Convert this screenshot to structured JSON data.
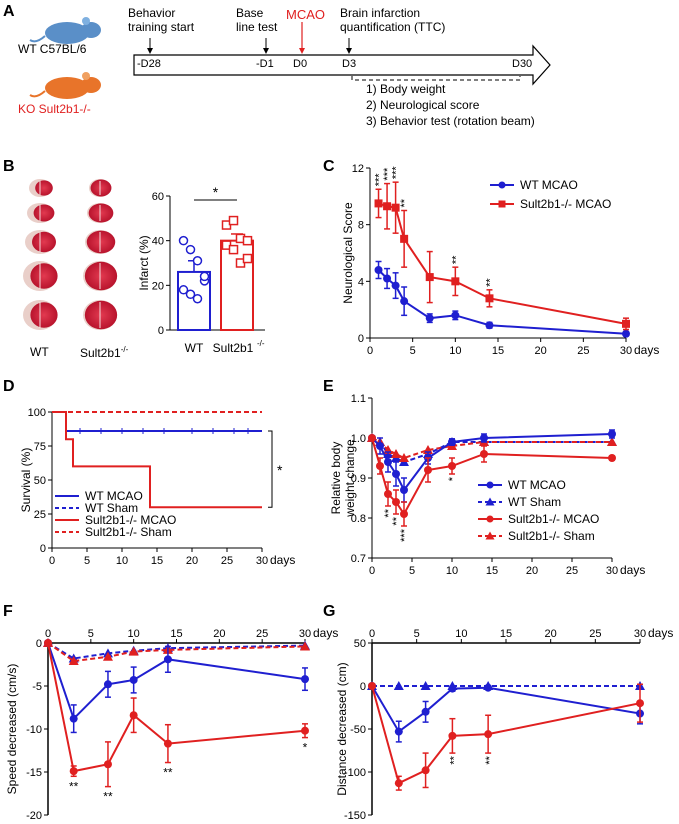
{
  "colors": {
    "wt": "#1f1fd0",
    "ko": "#e02020",
    "mouse_wt": "#5a8fc8",
    "mouse_ko": "#e8742a",
    "brain_red": "#c8102e",
    "brain_pale": "#e9cfc9"
  },
  "panel_labels": [
    "A",
    "B",
    "C",
    "D",
    "E",
    "F",
    "G"
  ],
  "panelA": {
    "wt_label": "WT C57BL/6",
    "ko_label": "KO Sult2b1-/-",
    "events": [
      {
        "label": "Behavior\ntraining start",
        "tick": "-D28"
      },
      {
        "label": "Base\nline test",
        "tick": "-D1"
      },
      {
        "label": "MCAO",
        "tick": "D0"
      },
      {
        "label": "Brain infarction\nquantification (TTC)",
        "tick": "D3"
      }
    ],
    "end_tick": "D30",
    "assessments": [
      "1) Body weight",
      "2) Neurological score",
      "3) Behavior test (rotation beam)"
    ]
  },
  "panelB": {
    "group_labels": [
      "WT",
      "Sult2b1"
    ],
    "group_sup": "-/-",
    "chart_data": {
      "type": "bar",
      "categories": [
        "WT",
        "Sult2b1-/-"
      ],
      "values": [
        26,
        40
      ],
      "errors": [
        5,
        3
      ],
      "points": [
        [
          40,
          36,
          31,
          22,
          18,
          16,
          14,
          24
        ],
        [
          47,
          49,
          41,
          40,
          38,
          36,
          30,
          32
        ]
      ],
      "ylabel": "Infarct (%)",
      "ylim": [
        0,
        60
      ],
      "yticks": [
        0,
        20,
        40,
        60
      ],
      "significance": "*"
    }
  },
  "panelC": {
    "chart_data": {
      "type": "line",
      "ylabel": "Neurological Score",
      "xunit": "days",
      "xlim": [
        0,
        30
      ],
      "ylim": [
        0,
        12
      ],
      "xticks": [
        0,
        5,
        10,
        15,
        20,
        25,
        30
      ],
      "yticks": [
        0,
        4,
        8,
        12
      ],
      "series": [
        {
          "name": "WT MCAO",
          "x": [
            1,
            2,
            3,
            4,
            7,
            10,
            14,
            30
          ],
          "y": [
            4.8,
            4.2,
            3.7,
            2.6,
            1.4,
            1.6,
            0.9,
            0.3
          ],
          "err": [
            0.6,
            0.7,
            0.9,
            1.0,
            0.3,
            0.3,
            0.2,
            0.1
          ]
        },
        {
          "name": "Sult2b1-/- MCAO",
          "x": [
            1,
            2,
            3,
            4,
            7,
            10,
            14,
            30
          ],
          "y": [
            9.5,
            9.3,
            9.2,
            7.0,
            4.3,
            4.0,
            2.8,
            1.0
          ],
          "err": [
            1.0,
            1.6,
            1.8,
            2.0,
            1.8,
            1.0,
            0.6,
            0.4
          ]
        }
      ],
      "annotations": [
        {
          "x": 1,
          "text": "***"
        },
        {
          "x": 2,
          "text": "***"
        },
        {
          "x": 3,
          "text": "***"
        },
        {
          "x": 4,
          "text": "**"
        },
        {
          "x": 10,
          "text": "**"
        },
        {
          "x": 14,
          "text": "**"
        }
      ]
    }
  },
  "panelD": {
    "chart_data": {
      "type": "line",
      "ylabel": "Survival (%)",
      "xunit": "days",
      "xlim": [
        0,
        30
      ],
      "ylim": [
        0,
        100
      ],
      "xticks": [
        0,
        5,
        10,
        15,
        20,
        25,
        30
      ],
      "yticks": [
        0,
        25,
        50,
        75,
        100
      ],
      "series": [
        {
          "name": "WT MCAO",
          "x": [
            0,
            2,
            2,
            30
          ],
          "y": [
            100,
            100,
            86,
            86
          ]
        },
        {
          "name": "WT Sham",
          "x": [
            0,
            30
          ],
          "y": [
            100,
            100
          ]
        },
        {
          "name": "Sult2b1-/- MCAO",
          "x": [
            0,
            2,
            2,
            3,
            3,
            14,
            14,
            30
          ],
          "y": [
            100,
            100,
            80,
            80,
            60,
            60,
            30,
            30
          ]
        },
        {
          "name": "Sult2b1-/- Sham",
          "x": [
            0,
            30
          ],
          "y": [
            100,
            100
          ]
        }
      ],
      "significance": "*"
    }
  },
  "panelE": {
    "chart_data": {
      "type": "line",
      "ylabel": "Relative body weight change",
      "xunit": "days",
      "xlim": [
        0,
        30
      ],
      "ylim": [
        0.7,
        1.1
      ],
      "xticks": [
        0,
        5,
        10,
        15,
        20,
        25,
        30
      ],
      "yticks": [
        0.7,
        0.8,
        0.9,
        1.0,
        1.1
      ],
      "series": [
        {
          "name": "WT MCAO",
          "x": [
            0,
            1,
            2,
            3,
            4,
            7,
            10,
            14,
            30
          ],
          "y": [
            1.0,
            0.98,
            0.94,
            0.91,
            0.87,
            0.95,
            0.99,
            1.0,
            1.01
          ],
          "err": [
            0.005,
            0.02,
            0.025,
            0.03,
            0.03,
            0.015,
            0.008,
            0.01,
            0.01
          ]
        },
        {
          "name": "WT Sham",
          "x": [
            0,
            1,
            2,
            3,
            4,
            7,
            10,
            14,
            30
          ],
          "y": [
            1.0,
            0.99,
            0.96,
            0.95,
            0.94,
            0.96,
            0.99,
            0.99,
            0.99
          ]
        },
        {
          "name": "Sult2b1-/- MCAO",
          "x": [
            0,
            1,
            2,
            3,
            4,
            7,
            10,
            14,
            30
          ],
          "y": [
            1.0,
            0.93,
            0.86,
            0.84,
            0.81,
            0.92,
            0.93,
            0.96,
            0.95
          ],
          "err": [
            0.005,
            0.02,
            0.03,
            0.03,
            0.03,
            0.03,
            0.02,
            0.02,
            0.005
          ]
        },
        {
          "name": "Sult2b1-/- Sham",
          "x": [
            0,
            1,
            2,
            3,
            4,
            7,
            10,
            14,
            30
          ],
          "y": [
            1.0,
            0.99,
            0.97,
            0.96,
            0.95,
            0.97,
            0.98,
            0.99,
            0.99
          ]
        }
      ],
      "annotations": [
        {
          "x": 2,
          "text": "**"
        },
        {
          "x": 3,
          "text": "**"
        },
        {
          "x": 4,
          "text": "***"
        },
        {
          "x": 10,
          "text": "*"
        }
      ]
    }
  },
  "panelF": {
    "chart_data": {
      "type": "line",
      "ylabel": "Speed decreased (cm/s)",
      "xunit": "days",
      "xlim": [
        0,
        30
      ],
      "ylim": [
        -20,
        0
      ],
      "xticks": [
        0,
        5,
        10,
        15,
        20,
        25,
        30
      ],
      "yticks": [
        0,
        -5,
        -10,
        -15,
        -20
      ],
      "series": [
        {
          "name": "WT MCAO",
          "x": [
            0,
            3,
            7,
            10,
            14,
            30
          ],
          "y": [
            0,
            -8.8,
            -4.8,
            -4.3,
            -1.9,
            -4.2
          ],
          "err": [
            0,
            1.6,
            1.5,
            1.5,
            1.5,
            1.3
          ]
        },
        {
          "name": "WT Sham",
          "x": [
            0,
            3,
            7,
            10,
            14,
            30
          ],
          "y": [
            0,
            -1.8,
            -1.2,
            -0.9,
            -0.6,
            -0.3
          ]
        },
        {
          "name": "Sult2b1-/- MCAO",
          "x": [
            0,
            3,
            7,
            10,
            14,
            30
          ],
          "y": [
            0,
            -14.9,
            -14.1,
            -8.4,
            -11.7,
            -10.2
          ],
          "err": [
            0,
            0.6,
            2.6,
            2.0,
            2.2,
            0.8
          ]
        },
        {
          "name": "Sult2b1-/- Sham",
          "x": [
            0,
            3,
            7,
            10,
            14,
            30
          ],
          "y": [
            0,
            -2.1,
            -1.6,
            -1.0,
            -0.8,
            -0.4
          ]
        }
      ],
      "annotations": [
        {
          "x": 3,
          "text": "**"
        },
        {
          "x": 7,
          "text": "**"
        },
        {
          "x": 14,
          "text": "**"
        },
        {
          "x": 30,
          "text": "*"
        }
      ]
    }
  },
  "panelG": {
    "chart_data": {
      "type": "line",
      "ylabel": "Distance decreased (cm)",
      "xunit": "days",
      "xlim": [
        0,
        30
      ],
      "ylim": [
        -150,
        50
      ],
      "xticks": [
        0,
        5,
        10,
        15,
        20,
        25,
        30
      ],
      "yticks": [
        50,
        0,
        -50,
        -100,
        -150
      ],
      "series": [
        {
          "name": "WT MCAO",
          "x": [
            0,
            3,
            6,
            9,
            13,
            30
          ],
          "y": [
            0,
            -53,
            -30,
            -3,
            -2,
            -32
          ],
          "err": [
            0,
            12,
            12,
            3,
            2,
            12
          ]
        },
        {
          "name": "WT Sham",
          "x": [
            0,
            3,
            6,
            9,
            13,
            30
          ],
          "y": [
            0,
            0,
            0,
            0,
            0,
            0
          ]
        },
        {
          "name": "Sult2b1-/- MCAO",
          "x": [
            0,
            3,
            6,
            9,
            13,
            30
          ],
          "y": [
            0,
            -113,
            -98,
            -58,
            -56,
            -20
          ],
          "err": [
            0,
            8,
            20,
            20,
            22,
            22
          ]
        },
        {
          "name": "Sult2b1-/- Sham",
          "x": [
            0,
            3,
            6,
            9,
            13,
            30
          ],
          "y": [
            0,
            0,
            0,
            0,
            0,
            0
          ]
        }
      ],
      "annotations": [
        {
          "x": 9,
          "text": "**"
        },
        {
          "x": 13,
          "text": "**"
        }
      ]
    }
  }
}
